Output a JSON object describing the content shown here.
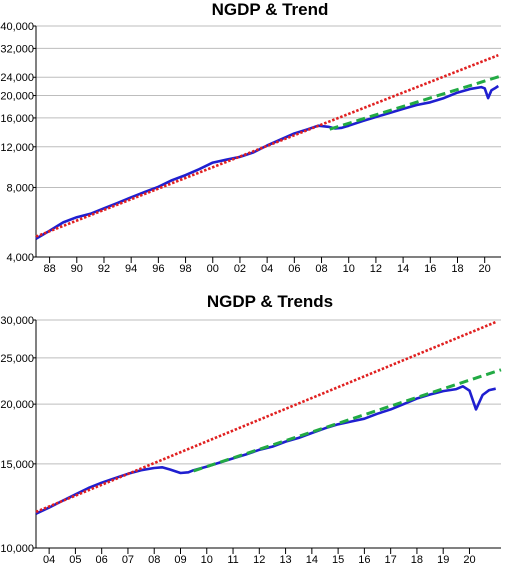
{
  "chart_data": [
    {
      "type": "line",
      "title": "NGDP & Trend",
      "xlabel": "",
      "ylabel": "",
      "yscale": "log",
      "xlim": [
        1987.0,
        2021.2
      ],
      "ylim": [
        4000,
        40000
      ],
      "y_ticks": [
        4000,
        8000,
        12000,
        16000,
        20000,
        24000,
        32000,
        40000
      ],
      "y_tick_labels": [
        "4,000",
        "8,000",
        "12,000",
        "16,000",
        "20,000",
        "24,000",
        "32,000",
        "40,000"
      ],
      "x_ticks": [
        1988,
        1990,
        1992,
        1994,
        1996,
        1998,
        2000,
        2002,
        2004,
        2006,
        2008,
        2010,
        2012,
        2014,
        2016,
        2018,
        2020
      ],
      "x_tick_labels": [
        "88",
        "90",
        "92",
        "94",
        "96",
        "98",
        "00",
        "02",
        "04",
        "06",
        "08",
        "10",
        "12",
        "14",
        "16",
        "18",
        "20"
      ],
      "grid": true,
      "series": [
        {
          "role": "ngdp",
          "color": "#1f1fd0",
          "style": "solid",
          "x": [
            1987.0,
            1988.0,
            1989.0,
            1990.0,
            1991.0,
            1992.0,
            1993.0,
            1994.0,
            1995.0,
            1996.0,
            1997.0,
            1998.0,
            1999.0,
            2000.0,
            2001.0,
            2002.0,
            2003.0,
            2004.0,
            2005.0,
            2006.0,
            2007.0,
            2007.75,
            2008.5,
            2009.0,
            2009.5,
            2010.0,
            2011.0,
            2012.0,
            2013.0,
            2014.0,
            2015.0,
            2016.0,
            2017.0,
            2018.0,
            2019.0,
            2019.75,
            2020.0,
            2020.25,
            2020.5,
            2020.75,
            2021.0
          ],
          "y": [
            4800,
            5200,
            5650,
            5950,
            6150,
            6500,
            6850,
            7250,
            7650,
            8050,
            8600,
            9050,
            9600,
            10250,
            10550,
            10850,
            11350,
            12150,
            12900,
            13700,
            14300,
            14800,
            14650,
            14400,
            14500,
            14800,
            15500,
            16150,
            16800,
            17500,
            18200,
            18700,
            19500,
            20600,
            21400,
            21750,
            21500,
            19500,
            21100,
            21500,
            22000
          ]
        },
        {
          "role": "trend",
          "color": "#e02020",
          "style": "dotted",
          "x": [
            1987.0,
            2021.0
          ],
          "y": [
            4900,
            29900
          ]
        },
        {
          "role": "post-2009 trend",
          "color": "#22aa44",
          "style": "dashed",
          "x": [
            2008.6,
            2021.2
          ],
          "y": [
            14300,
            24300
          ]
        }
      ]
    },
    {
      "type": "line",
      "title": "NGDP & Trends",
      "xlabel": "",
      "ylabel": "",
      "yscale": "log",
      "xlim": [
        2003.5,
        2021.2
      ],
      "ylim": [
        10000,
        30000
      ],
      "y_ticks": [
        10000,
        15000,
        20000,
        25000,
        30000
      ],
      "y_tick_labels": [
        "10,000",
        "15,000",
        "20,000",
        "25,000",
        "30,000"
      ],
      "x_ticks": [
        2004,
        2005,
        2006,
        2007,
        2008,
        2009,
        2010,
        2011,
        2012,
        2013,
        2014,
        2015,
        2016,
        2017,
        2018,
        2019,
        2020
      ],
      "x_tick_labels": [
        "04",
        "05",
        "06",
        "07",
        "08",
        "09",
        "10",
        "11",
        "12",
        "13",
        "14",
        "15",
        "16",
        "17",
        "18",
        "19",
        "20"
      ],
      "grid": true,
      "series": [
        {
          "role": "ngdp",
          "color": "#1f1fd0",
          "style": "solid",
          "x": [
            2003.5,
            2004.0,
            2004.5,
            2005.0,
            2005.5,
            2006.0,
            2006.5,
            2007.0,
            2007.5,
            2008.0,
            2008.3,
            2008.6,
            2009.0,
            2009.3,
            2009.5,
            2010.0,
            2010.5,
            2011.0,
            2011.5,
            2012.0,
            2012.5,
            2013.0,
            2013.5,
            2014.0,
            2014.5,
            2015.0,
            2015.5,
            2016.0,
            2016.5,
            2017.0,
            2017.5,
            2018.0,
            2018.5,
            2019.0,
            2019.5,
            2019.75,
            2020.0,
            2020.25,
            2020.5,
            2020.75,
            2021.0
          ],
          "y": [
            11800,
            12150,
            12550,
            12950,
            13350,
            13700,
            14000,
            14300,
            14550,
            14700,
            14750,
            14600,
            14350,
            14400,
            14550,
            14800,
            15100,
            15400,
            15700,
            16050,
            16300,
            16700,
            17000,
            17400,
            17800,
            18150,
            18400,
            18650,
            19100,
            19500,
            20000,
            20550,
            20950,
            21300,
            21500,
            21800,
            21350,
            19500,
            20900,
            21400,
            21550
          ]
        },
        {
          "role": "trend",
          "color": "#e02020",
          "style": "dotted",
          "x": [
            2003.5,
            2021.0
          ],
          "y": [
            11900,
            29700
          ]
        },
        {
          "role": "post-2009 trend",
          "color": "#22aa44",
          "style": "dashed",
          "x": [
            2009.5,
            2021.2
          ],
          "y": [
            14500,
            23600
          ]
        }
      ]
    }
  ]
}
